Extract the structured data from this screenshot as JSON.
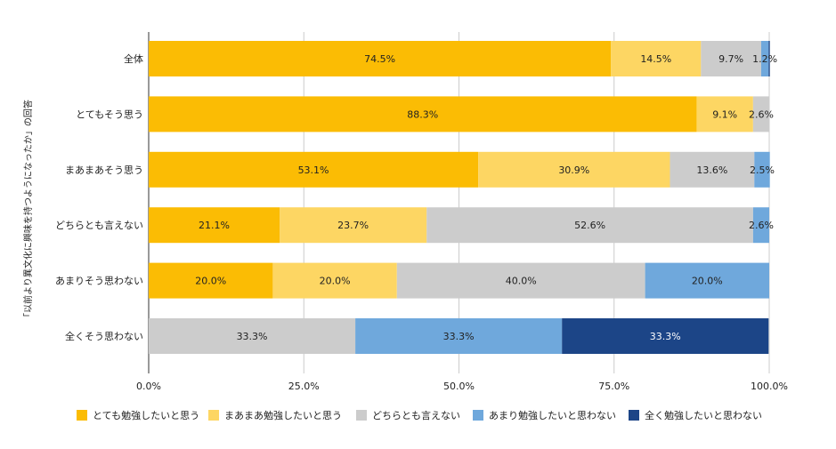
{
  "chart_data": {
    "type": "bar",
    "orientation": "horizontal",
    "stacked": true,
    "title": "",
    "ylabel": "「以前より異文化に興味を持つようになったか」の回答",
    "xlabel": "",
    "xlim": [
      0,
      100
    ],
    "x_ticks": [
      "0.0%",
      "25.0%",
      "50.0%",
      "75.0%",
      "100.0%"
    ],
    "x_tick_values": [
      0,
      25,
      50,
      75,
      100
    ],
    "grid": true,
    "legend_position": "bottom",
    "categories": [
      "全体",
      "とてもそう思う",
      "まあまあそう思う",
      "どちらとも言えない",
      "あまりそう思わない",
      "全くそう思わない"
    ],
    "series": [
      {
        "name": "とても勉強したいと思う",
        "color": "#FBBC04",
        "values": [
          74.5,
          88.3,
          53.1,
          21.1,
          20.0,
          0
        ],
        "labels": [
          "74.5%",
          "88.3%",
          "53.1%",
          "21.1%",
          "20.0%",
          ""
        ]
      },
      {
        "name": "まあまあ勉強したいと思う",
        "color": "#FDD663",
        "values": [
          14.5,
          9.1,
          30.9,
          23.7,
          20.0,
          0
        ],
        "labels": [
          "14.5%",
          "9.1%",
          "30.9%",
          "23.7%",
          "20.0%",
          ""
        ]
      },
      {
        "name": "どちらとも言えない",
        "color": "#CCCCCC",
        "values": [
          9.7,
          2.6,
          13.6,
          52.6,
          40.0,
          33.3
        ],
        "labels": [
          "9.7%",
          "2.6%",
          "13.6%",
          "52.6%",
          "40.0%",
          "33.3%"
        ]
      },
      {
        "name": "あまり勉強したいと思わない",
        "color": "#6FA8DC",
        "values": [
          1.2,
          0,
          2.5,
          2.6,
          20.0,
          33.3
        ],
        "labels": [
          "1.2%",
          "",
          "2.5%",
          "2.6%",
          "20.0%",
          "33.3%"
        ]
      },
      {
        "name": "全く勉強したいと思わない",
        "color": "#1C4587",
        "values": [
          0.2,
          0,
          0,
          0,
          0,
          33.3
        ],
        "labels": [
          "0.2%",
          "",
          "",
          "",
          "",
          "33.3%"
        ]
      }
    ]
  }
}
